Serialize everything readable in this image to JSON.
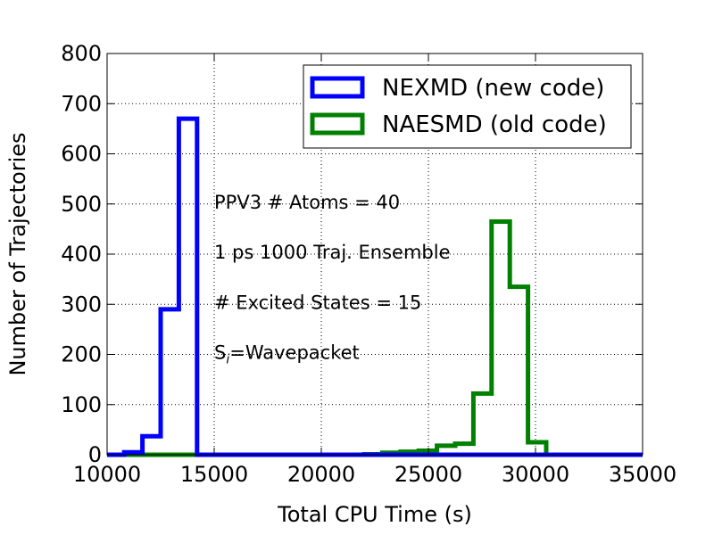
{
  "chart_data": {
    "type": "line",
    "title": "",
    "xlabel": "Total CPU Time (s)",
    "ylabel": "Number of Trajectories",
    "xlim": [
      10000,
      35000
    ],
    "ylim": [
      0,
      800
    ],
    "xticks": [
      10000,
      15000,
      20000,
      25000,
      30000,
      35000
    ],
    "yticks": [
      0,
      100,
      200,
      300,
      400,
      500,
      600,
      700,
      800
    ],
    "grid": true,
    "legend_position": "top-right",
    "bin_width": 850,
    "series": [
      {
        "name": "NEXMD (new code)",
        "color": "#0000ff",
        "bins": [
          {
            "start": 10800,
            "value": 5
          },
          {
            "start": 11650,
            "value": 37
          },
          {
            "start": 12500,
            "value": 290
          },
          {
            "start": 13350,
            "value": 670
          },
          {
            "start": 14200,
            "value": 0
          }
        ]
      },
      {
        "name": "NAESMD (old code)",
        "color": "#008000",
        "bins": [
          {
            "start": 22000,
            "value": 1
          },
          {
            "start": 22850,
            "value": 4
          },
          {
            "start": 23700,
            "value": 6
          },
          {
            "start": 24550,
            "value": 8
          },
          {
            "start": 25400,
            "value": 18
          },
          {
            "start": 26250,
            "value": 22
          },
          {
            "start": 27100,
            "value": 122
          },
          {
            "start": 27950,
            "value": 465
          },
          {
            "start": 28800,
            "value": 335
          },
          {
            "start": 29650,
            "value": 25
          },
          {
            "start": 30500,
            "value": 0
          }
        ]
      }
    ],
    "annotations": [
      {
        "text": "PPV3 # Atoms = 40",
        "x": 15000,
        "y": 505
      },
      {
        "text": "1 ps 1000 Traj. Ensemble",
        "x": 15000,
        "y": 405
      },
      {
        "text": "# Excited States = 15",
        "x": 15000,
        "y": 305
      },
      {
        "text": "S",
        "sub": "i",
        "after": "=Wavepacket",
        "x": 15000,
        "y": 205
      }
    ]
  }
}
